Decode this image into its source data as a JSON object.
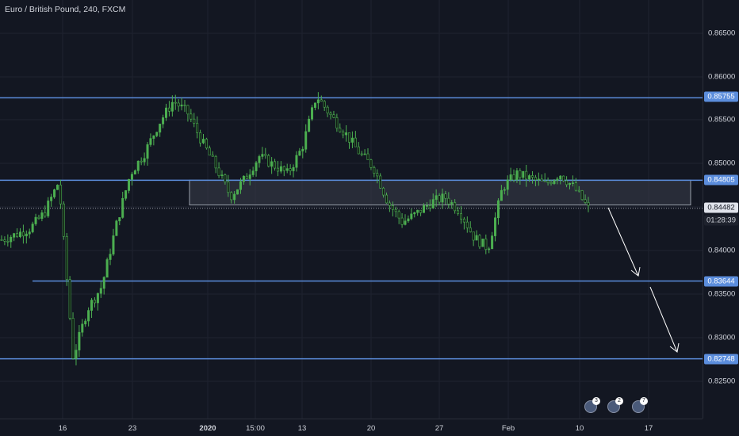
{
  "symbol_title": "Euro / British Pound, 240, FXCM",
  "price_scale": {
    "ticks": [
      "0.86500",
      "0.86000",
      "0.85500",
      "0.85000",
      "0.84000",
      "0.83500",
      "0.83000",
      "0.82500"
    ],
    "labels": [
      {
        "text": "0.85755",
        "style": "blue"
      },
      {
        "text": "0.84805",
        "style": "blue"
      },
      {
        "text": "0.84482",
        "style": "white"
      },
      {
        "text": "01:28:39",
        "style": "dark"
      },
      {
        "text": "0.83644",
        "style": "blue"
      },
      {
        "text": "0.82748",
        "style": "blue"
      }
    ]
  },
  "time_scale": {
    "ticks": [
      "16",
      "23",
      "2020",
      "15:00",
      "13",
      "20",
      "27",
      "Feb",
      "10",
      "17"
    ]
  },
  "horizontal_levels": [
    0.85755,
    0.84805,
    0.83644,
    0.82748
  ],
  "zone": {
    "top": 0.84805,
    "bottom": 0.8452
  },
  "current_price": 0.84482,
  "events": [
    {
      "badge": "3"
    },
    {
      "badge": "2"
    },
    {
      "badge": "7"
    }
  ],
  "colors": {
    "background": "#131722",
    "candle": "#4caf50",
    "level_line": "#5b8ddc",
    "zone": "#3a3e4a",
    "arrow": "#ffffff"
  },
  "chart_data": {
    "type": "line",
    "title": "Euro / British Pound, 240, FXCM",
    "x_labels": [
      "16",
      "23",
      "2020",
      "15:00",
      "13",
      "20",
      "27",
      "Feb",
      "10",
      "17"
    ],
    "approx_close_path": [
      0.8412,
      0.8418,
      0.8425,
      0.8443,
      0.8479,
      0.8276,
      0.8332,
      0.8358,
      0.8428,
      0.8488,
      0.8512,
      0.8546,
      0.8572,
      0.8558,
      0.8525,
      0.8495,
      0.8462,
      0.8482,
      0.8508,
      0.8498,
      0.8488,
      0.8518,
      0.8578,
      0.8555,
      0.8535,
      0.8512,
      0.8495,
      0.8455,
      0.8432,
      0.8442,
      0.8455,
      0.8461,
      0.8445,
      0.8415,
      0.8402,
      0.8472,
      0.8488,
      0.8482,
      0.8476,
      0.8488,
      0.8472,
      0.8448
    ],
    "ylim": [
      0.8215,
      0.8675
    ]
  }
}
